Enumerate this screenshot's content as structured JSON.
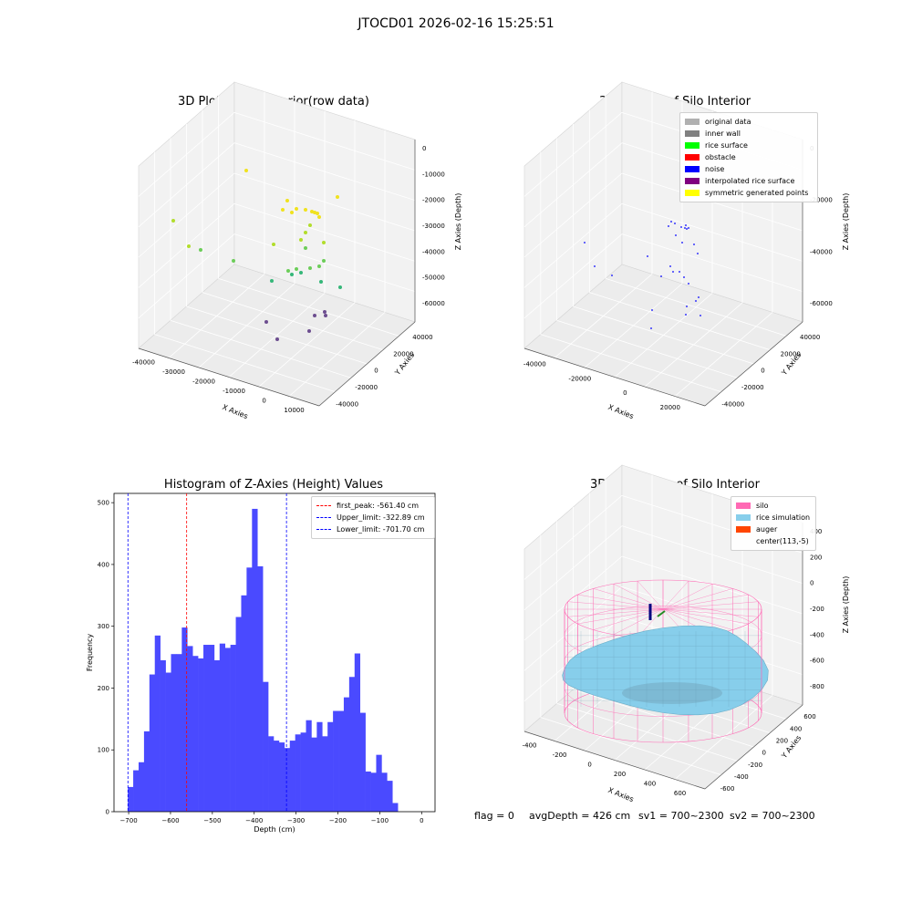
{
  "suptitle": "JTOCD01 2026-02-16 15:25:51",
  "footer": {
    "flag": "flag = 0",
    "avg": "avgDepth = 426 cm",
    "sv1": "sv1 = 700~2300",
    "sv2": "sv2 = 700~2300"
  },
  "chart_data": [
    {
      "type": "scatter",
      "title": "3D Plot of Silo Interior(row data)",
      "xlabel": "X Axies",
      "ylabel": "Y Axies",
      "zlabel": "Z Axies (Depth)",
      "xticks": [
        "-40000",
        "-30000",
        "-20000",
        "-10000",
        "0",
        "10000"
      ],
      "yticks": [
        "-40000",
        "-20000",
        "0",
        "20000",
        "40000"
      ],
      "zticks": [
        "0",
        "-10000",
        "-20000",
        "-30000",
        "-40000",
        "-50000",
        "-60000"
      ],
      "colormap": "viridis by depth"
    },
    {
      "type": "scatter",
      "title": "3D classify of Silo Interior",
      "xlabel": "X Axies",
      "ylabel": "Y Axies",
      "zlabel": "Z Axies (Depth)",
      "xticks": [
        "-40000",
        "-20000",
        "0",
        "20000"
      ],
      "yticks": [
        "-40000",
        "-20000",
        "0",
        "20000",
        "40000"
      ],
      "zticks": [
        "0",
        "-20000",
        "-40000",
        "-60000"
      ],
      "legend": [
        {
          "name": "original data",
          "color": "#b0b0b0"
        },
        {
          "name": "inner wall",
          "color": "#808080"
        },
        {
          "name": "rice surface",
          "color": "#00ff00"
        },
        {
          "name": "obstacle",
          "color": "#ff0000"
        },
        {
          "name": "noise",
          "color": "#0000ff"
        },
        {
          "name": "interpolated rice surface",
          "color": "#800080"
        },
        {
          "name": "symmetric generated points",
          "color": "#ffff00"
        }
      ]
    },
    {
      "type": "bar",
      "title": "Histogram of Z-Axies (Height) Values",
      "xlabel": "Depth (cm)",
      "ylabel": "Frequency",
      "xlim": [
        -735,
        32
      ],
      "ylim": [
        0,
        515
      ],
      "xticks": [
        -700,
        -600,
        -500,
        -400,
        -300,
        -200,
        -100,
        0
      ],
      "yticks": [
        0,
        100,
        200,
        300,
        400,
        500
      ],
      "bar_color": "#4a4aff",
      "bin_start": -702,
      "bin_width": 12.9,
      "values": [
        40,
        67,
        80,
        130,
        222,
        285,
        245,
        225,
        255,
        255,
        298,
        268,
        252,
        248,
        270,
        270,
        245,
        272,
        265,
        270,
        315,
        350,
        395,
        490,
        397,
        210,
        122,
        115,
        112,
        103,
        115,
        125,
        128,
        148,
        120,
        145,
        122,
        145,
        163,
        163,
        185,
        218,
        256,
        160,
        65,
        63,
        92,
        63,
        50,
        14
      ],
      "vlines": [
        {
          "label": "first_peak: -561.40 cm",
          "value": -561.4,
          "color": "#ff0000"
        },
        {
          "label": "Upper_limit: -322.89 cm",
          "value": -322.89,
          "color": "#0000ff"
        },
        {
          "label": "Lower_limit: -701.70 cm",
          "value": -701.7,
          "color": "#0000ff"
        }
      ]
    },
    {
      "type": "area",
      "title": "3D simulation of Silo Interior",
      "xlabel": "X Axies",
      "ylabel": "Y Axies",
      "zlabel": "Z Axies (Depth)",
      "xticks": [
        "-400",
        "-200",
        "0",
        "200",
        "400",
        "600"
      ],
      "yticks": [
        "-600",
        "-400",
        "-200",
        "0",
        "200",
        "400",
        "600"
      ],
      "zticks": [
        "400",
        "200",
        "0",
        "-200",
        "-400",
        "-600",
        "-800"
      ],
      "legend": [
        {
          "name": "silo",
          "color": "#ff69b4"
        },
        {
          "name": "rice simulation",
          "color": "#87ceeb"
        },
        {
          "name": "auger",
          "color": "#ff4500"
        },
        {
          "name": "center(113,-5)",
          "color": ""
        }
      ]
    }
  ]
}
